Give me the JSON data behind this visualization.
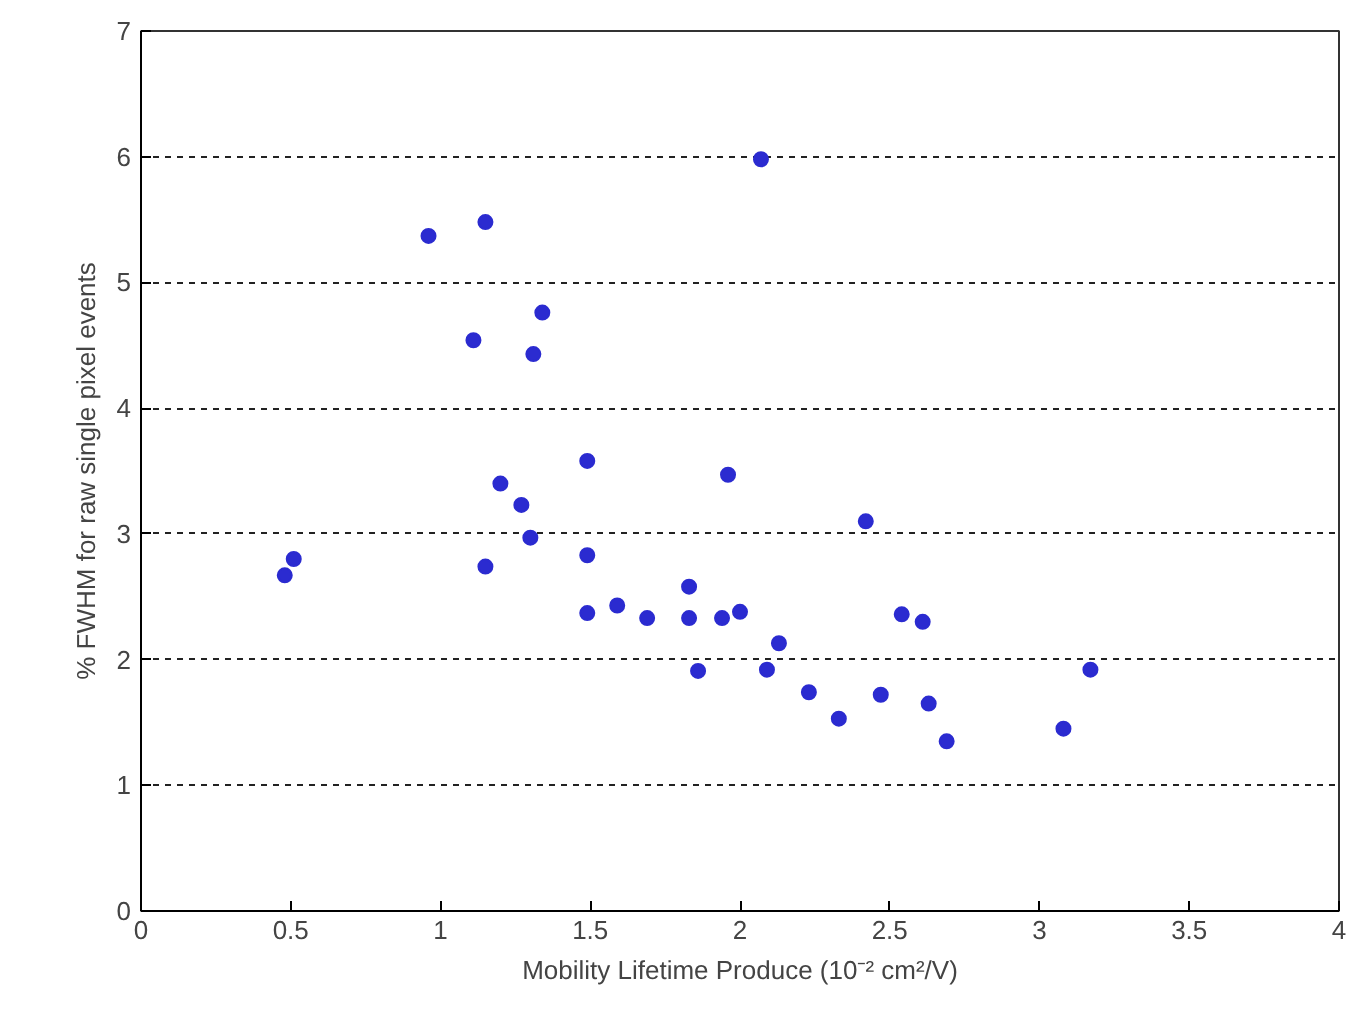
{
  "chart_data": {
    "type": "scatter",
    "xlabel": "Mobility Lifetime Produce (10⁻² cm²/V)",
    "ylabel": "% FWHM for raw single pixel events",
    "x": [
      0.48,
      0.51,
      0.96,
      1.15,
      1.11,
      1.34,
      1.31,
      1.2,
      1.27,
      1.49,
      1.3,
      1.15,
      1.49,
      1.49,
      1.59,
      1.69,
      1.83,
      1.83,
      1.86,
      1.94,
      2.0,
      1.96,
      2.07,
      2.09,
      2.13,
      2.23,
      2.33,
      2.42,
      2.47,
      2.54,
      2.61,
      2.63,
      2.69,
      3.08,
      3.17
    ],
    "values": [
      2.67,
      2.8,
      5.37,
      5.48,
      4.54,
      4.76,
      4.43,
      3.4,
      3.23,
      3.58,
      2.97,
      2.74,
      2.83,
      2.37,
      2.43,
      2.33,
      2.58,
      2.33,
      1.91,
      2.33,
      2.38,
      3.47,
      5.98,
      1.92,
      2.13,
      1.74,
      1.53,
      3.1,
      1.72,
      2.36,
      2.3,
      1.65,
      1.35,
      1.45,
      1.92
    ],
    "color": "#2b2bd0",
    "marker": "circle",
    "grid": "y",
    "xlim": [
      0,
      4
    ],
    "xticks": [
      0,
      0.5,
      1,
      1.5,
      2,
      2.5,
      3,
      3.5,
      4
    ],
    "ylim": [
      0,
      7
    ],
    "yticks": [
      0,
      1,
      2,
      3,
      4,
      5,
      6,
      7
    ]
  }
}
